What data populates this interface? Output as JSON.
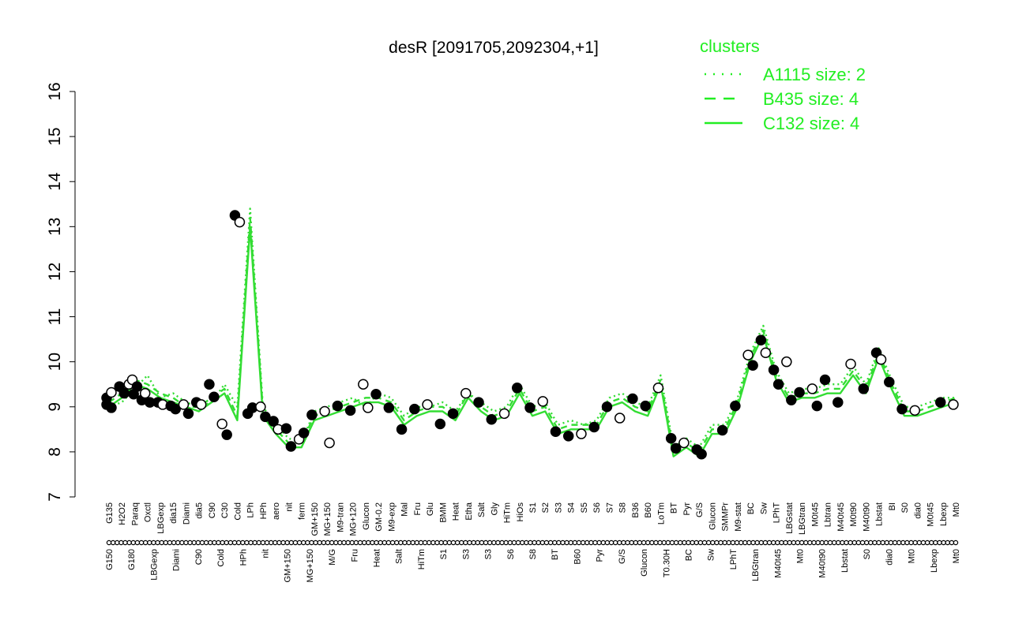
{
  "chart_data": {
    "type": "line",
    "title": "desR [2091705,2092304,+1]",
    "xlabel": "",
    "ylabel": "",
    "ylim": [
      7,
      16
    ],
    "y_ticks": [
      7,
      8,
      9,
      10,
      11,
      12,
      13,
      14,
      15,
      16
    ],
    "x_tick_labels_upper": [
      "G135",
      "H2O2",
      "Paraq",
      "Oxctl",
      "LBGexp",
      "dia15",
      "Diami",
      "dia5",
      "C90",
      "C30",
      "Cold",
      "LPh",
      "HPh",
      "aero",
      "nit",
      "ferm",
      "GM+150",
      "MG+150",
      "M9-tran",
      "MG+120",
      "Glucon",
      "GM-0.2",
      "M9-exp",
      "Mal",
      "Fru",
      "Glu",
      "BMM",
      "Heat",
      "Etha",
      "Salt",
      "Gly",
      "HiTm",
      "HiOs",
      "S1",
      "S2",
      "S3",
      "S4",
      "S5",
      "S6",
      "S7",
      "S8",
      "B36",
      "B60",
      "LoTm",
      "BT",
      "Pyr",
      "G/S",
      "Glucon",
      "SMMPr",
      "M9-stat",
      "BC",
      "Sw",
      "LPhT",
      "LBGstat",
      "LBGtran",
      "M0t45",
      "Lbtran",
      "M40t45",
      "M0t90",
      "M40t90",
      "Lbstat",
      "BI",
      "S0",
      "dia0",
      "M0t45",
      "Lbexp",
      "Mt0"
    ],
    "x_tick_labels_lower": [
      "G150",
      "G180",
      "LBGexp",
      "Diami",
      "C90",
      "Cold",
      "HPh",
      "nit",
      "GM+150",
      "MG+150",
      "M/G",
      "Fru",
      "Heat",
      "Salt",
      "HiTm",
      "S1",
      "S3",
      "S3",
      "S6",
      "S8",
      "BT",
      "B60",
      "Pyr",
      "G/S",
      "Glucon",
      "T0.30H",
      "BC",
      "Sw",
      "LPhT",
      "LBGtran",
      "M40t45",
      "Mt0",
      "M40t90",
      "Lbstat",
      "S0",
      "dia0",
      "Mt0",
      "Lbexp",
      "Mt0"
    ],
    "series": [
      {
        "name": "A1115 size: 2",
        "style": "dotted",
        "values": [
          9.0,
          9.1,
          9.4,
          9.7,
          9.2,
          9.3,
          9.1,
          9.0,
          9.1,
          9.5,
          9.0,
          13.4,
          9.0,
          8.6,
          8.3,
          8.2,
          8.9,
          9.0,
          9.1,
          9.2,
          9.0,
          9.3,
          9.2,
          8.8,
          9.0,
          9.0,
          9.1,
          8.9,
          9.3,
          9.1,
          8.9,
          9.0,
          9.5,
          9.0,
          9.1,
          8.6,
          8.7,
          8.6,
          8.7,
          9.2,
          9.3,
          9.1,
          9.0,
          9.7,
          8.1,
          8.3,
          8.1,
          8.6,
          8.6,
          9.2,
          10.2,
          10.8,
          9.8,
          9.3,
          9.4,
          9.4,
          9.5,
          9.5,
          9.9,
          9.5,
          10.3,
          9.6,
          9.0,
          9.0,
          9.1,
          9.2,
          9.2
        ]
      },
      {
        "name": "B435 size: 4",
        "style": "dashed",
        "values": [
          9.1,
          9.3,
          9.6,
          9.5,
          9.3,
          9.2,
          9.0,
          9.0,
          9.2,
          9.4,
          8.8,
          13.2,
          8.9,
          8.5,
          8.2,
          8.2,
          8.8,
          8.9,
          9.0,
          9.1,
          9.2,
          9.2,
          9.1,
          8.7,
          8.9,
          9.0,
          9.0,
          8.8,
          9.3,
          9.0,
          8.8,
          8.9,
          9.4,
          8.9,
          9.0,
          8.5,
          8.6,
          8.6,
          8.6,
          9.1,
          9.2,
          9.0,
          8.9,
          9.6,
          8.0,
          8.2,
          8.0,
          8.5,
          8.5,
          9.1,
          10.1,
          10.7,
          9.7,
          9.2,
          9.3,
          9.3,
          9.4,
          9.4,
          9.8,
          9.4,
          10.2,
          9.5,
          8.9,
          8.9,
          9.0,
          9.1,
          9.2
        ]
      },
      {
        "name": "C132 size: 4",
        "style": "solid",
        "values": [
          9.0,
          9.2,
          9.5,
          9.4,
          9.2,
          9.1,
          9.0,
          8.9,
          9.1,
          9.3,
          8.7,
          13.0,
          8.8,
          8.4,
          8.1,
          8.1,
          8.7,
          8.8,
          8.9,
          9.0,
          9.1,
          9.1,
          9.0,
          8.6,
          8.8,
          8.9,
          8.9,
          8.7,
          9.2,
          8.9,
          8.7,
          8.8,
          9.3,
          8.8,
          8.9,
          8.4,
          8.5,
          8.5,
          8.5,
          9.0,
          9.1,
          8.9,
          8.8,
          9.5,
          7.9,
          8.1,
          7.9,
          8.4,
          8.4,
          9.0,
          10.0,
          10.6,
          9.6,
          9.1,
          9.2,
          9.2,
          9.3,
          9.3,
          9.7,
          9.3,
          10.1,
          9.4,
          8.8,
          8.8,
          8.9,
          9.0,
          9.1
        ]
      }
    ],
    "points": [
      {
        "l": "G150",
        "y": 9.05
      },
      {
        "l": "G150",
        "y": 8.98
      },
      {
        "l": "G180",
        "y": 9.5
      },
      {
        "l": "G180",
        "y": 9.28
      },
      {
        "l": "G135",
        "y": 9.2
      },
      {
        "l": "G135",
        "y": 9.32
      },
      {
        "l": "H2O2",
        "y": 9.45
      },
      {
        "l": "H2O2",
        "y": 9.3
      },
      {
        "l": "Paraq",
        "y": 9.6
      },
      {
        "l": "Paraq",
        "y": 9.45
      },
      {
        "l": "Paraq",
        "y": 9.15
      },
      {
        "l": "Oxctl",
        "y": 9.3
      },
      {
        "l": "Oxctl",
        "y": 9.1
      },
      {
        "l": "LBGexp",
        "y": 9.1
      },
      {
        "l": "LBGexp",
        "y": 9.05
      },
      {
        "l": "dia15",
        "y": 9.02
      },
      {
        "l": "dia15",
        "y": 8.95
      },
      {
        "l": "Diami",
        "y": 9.05
      },
      {
        "l": "Diami",
        "y": 8.85
      },
      {
        "l": "dia5",
        "y": 9.1
      },
      {
        "l": "dia5",
        "y": 9.05
      },
      {
        "l": "C90",
        "y": 9.5
      },
      {
        "l": "C90",
        "y": 9.22
      },
      {
        "l": "C30",
        "y": 8.62
      },
      {
        "l": "C30",
        "y": 8.38
      },
      {
        "l": "Cold",
        "y": 13.25
      },
      {
        "l": "Cold",
        "y": 13.1
      },
      {
        "l": "LPh",
        "y": 8.85
      },
      {
        "l": "LPh",
        "y": 8.98
      },
      {
        "l": "HPh",
        "y": 9.0
      },
      {
        "l": "HPh",
        "y": 8.78
      },
      {
        "l": "aero",
        "y": 8.68
      },
      {
        "l": "aero",
        "y": 8.5
      },
      {
        "l": "nit",
        "y": 8.52
      },
      {
        "l": "nit",
        "y": 8.12
      },
      {
        "l": "ferm",
        "y": 8.28
      },
      {
        "l": "ferm",
        "y": 8.42
      },
      {
        "l": "GM+150",
        "y": 8.82
      },
      {
        "l": "MG+150",
        "y": 8.9
      },
      {
        "l": "M9-tran",
        "y": 9.02
      },
      {
        "l": "MG+120",
        "y": 8.92
      },
      {
        "l": "Glucon",
        "y": 9.5
      },
      {
        "l": "GM-0.2",
        "y": 9.28
      },
      {
        "l": "M9-exp",
        "y": 8.98
      },
      {
        "l": "M/G",
        "y": 8.2
      },
      {
        "l": "Mal",
        "y": 8.5
      },
      {
        "l": "Fru",
        "y": 8.95
      },
      {
        "l": "Glu",
        "y": 9.05
      },
      {
        "l": "BMM",
        "y": 8.62
      },
      {
        "l": "Heat",
        "y": 8.85
      },
      {
        "l": "Etha",
        "y": 9.3
      },
      {
        "l": "Salt",
        "y": 9.1
      },
      {
        "l": "Gly",
        "y": 8.72
      },
      {
        "l": "HiTm",
        "y": 8.85
      },
      {
        "l": "HiOs",
        "y": 9.42
      },
      {
        "l": "S1",
        "y": 8.98
      },
      {
        "l": "S2",
        "y": 9.12
      },
      {
        "l": "S3",
        "y": 8.45
      },
      {
        "l": "S4",
        "y": 8.35
      },
      {
        "l": "S5",
        "y": 8.4
      },
      {
        "l": "S6",
        "y": 8.55
      },
      {
        "l": "S7",
        "y": 9.0
      },
      {
        "l": "S8",
        "y": 8.75
      },
      {
        "l": "B36",
        "y": 9.18
      },
      {
        "l": "B60",
        "y": 9.02
      },
      {
        "l": "LoTm",
        "y": 9.42
      },
      {
        "l": "BT",
        "y": 8.3
      },
      {
        "l": "BT",
        "y": 8.08
      },
      {
        "l": "Pyr",
        "y": 8.2
      },
      {
        "l": "G/S",
        "y": 8.05
      },
      {
        "l": "G/S",
        "y": 7.95
      },
      {
        "l": "Glucon",
        "y": 8.98
      },
      {
        "l": "SMMPr",
        "y": 8.48
      },
      {
        "l": "M9-stat",
        "y": 9.02
      },
      {
        "l": "BC",
        "y": 10.15
      },
      {
        "l": "BC",
        "y": 9.92
      },
      {
        "l": "Sw",
        "y": 10.48
      },
      {
        "l": "Sw",
        "y": 10.2
      },
      {
        "l": "LPhT",
        "y": 9.82
      },
      {
        "l": "LPhT",
        "y": 9.5
      },
      {
        "l": "LBGstat",
        "y": 10.0
      },
      {
        "l": "LBGstat",
        "y": 9.15
      },
      {
        "l": "LBGtran",
        "y": 9.32
      },
      {
        "l": "M0t45",
        "y": 9.4
      },
      {
        "l": "M40t45",
        "y": 9.1
      },
      {
        "l": "Lbtran",
        "y": 9.6
      },
      {
        "l": "M0t90",
        "y": 9.95
      },
      {
        "l": "M40t90",
        "y": 9.4
      },
      {
        "l": "Lbstat",
        "y": 10.2
      },
      {
        "l": "Lbstat",
        "y": 10.05
      },
      {
        "l": "BI",
        "y": 9.55
      },
      {
        "l": "S0",
        "y": 8.95
      },
      {
        "l": "dia0",
        "y": 8.92
      },
      {
        "l": "M0t45",
        "y": 9.02
      },
      {
        "l": "Lbexp",
        "y": 9.1
      },
      {
        "l": "Mt0",
        "y": 9.05
      }
    ],
    "legend": {
      "title": "clusters",
      "placement": "top-right",
      "entries": [
        {
          "label": "A1115 size: 2",
          "style": "dotted"
        },
        {
          "label": "B435 size: 4",
          "style": "dashed"
        },
        {
          "label": "C132 size: 4",
          "style": "solid"
        }
      ]
    },
    "line_color": "#33dd33",
    "legend_color": "#22ee22"
  }
}
